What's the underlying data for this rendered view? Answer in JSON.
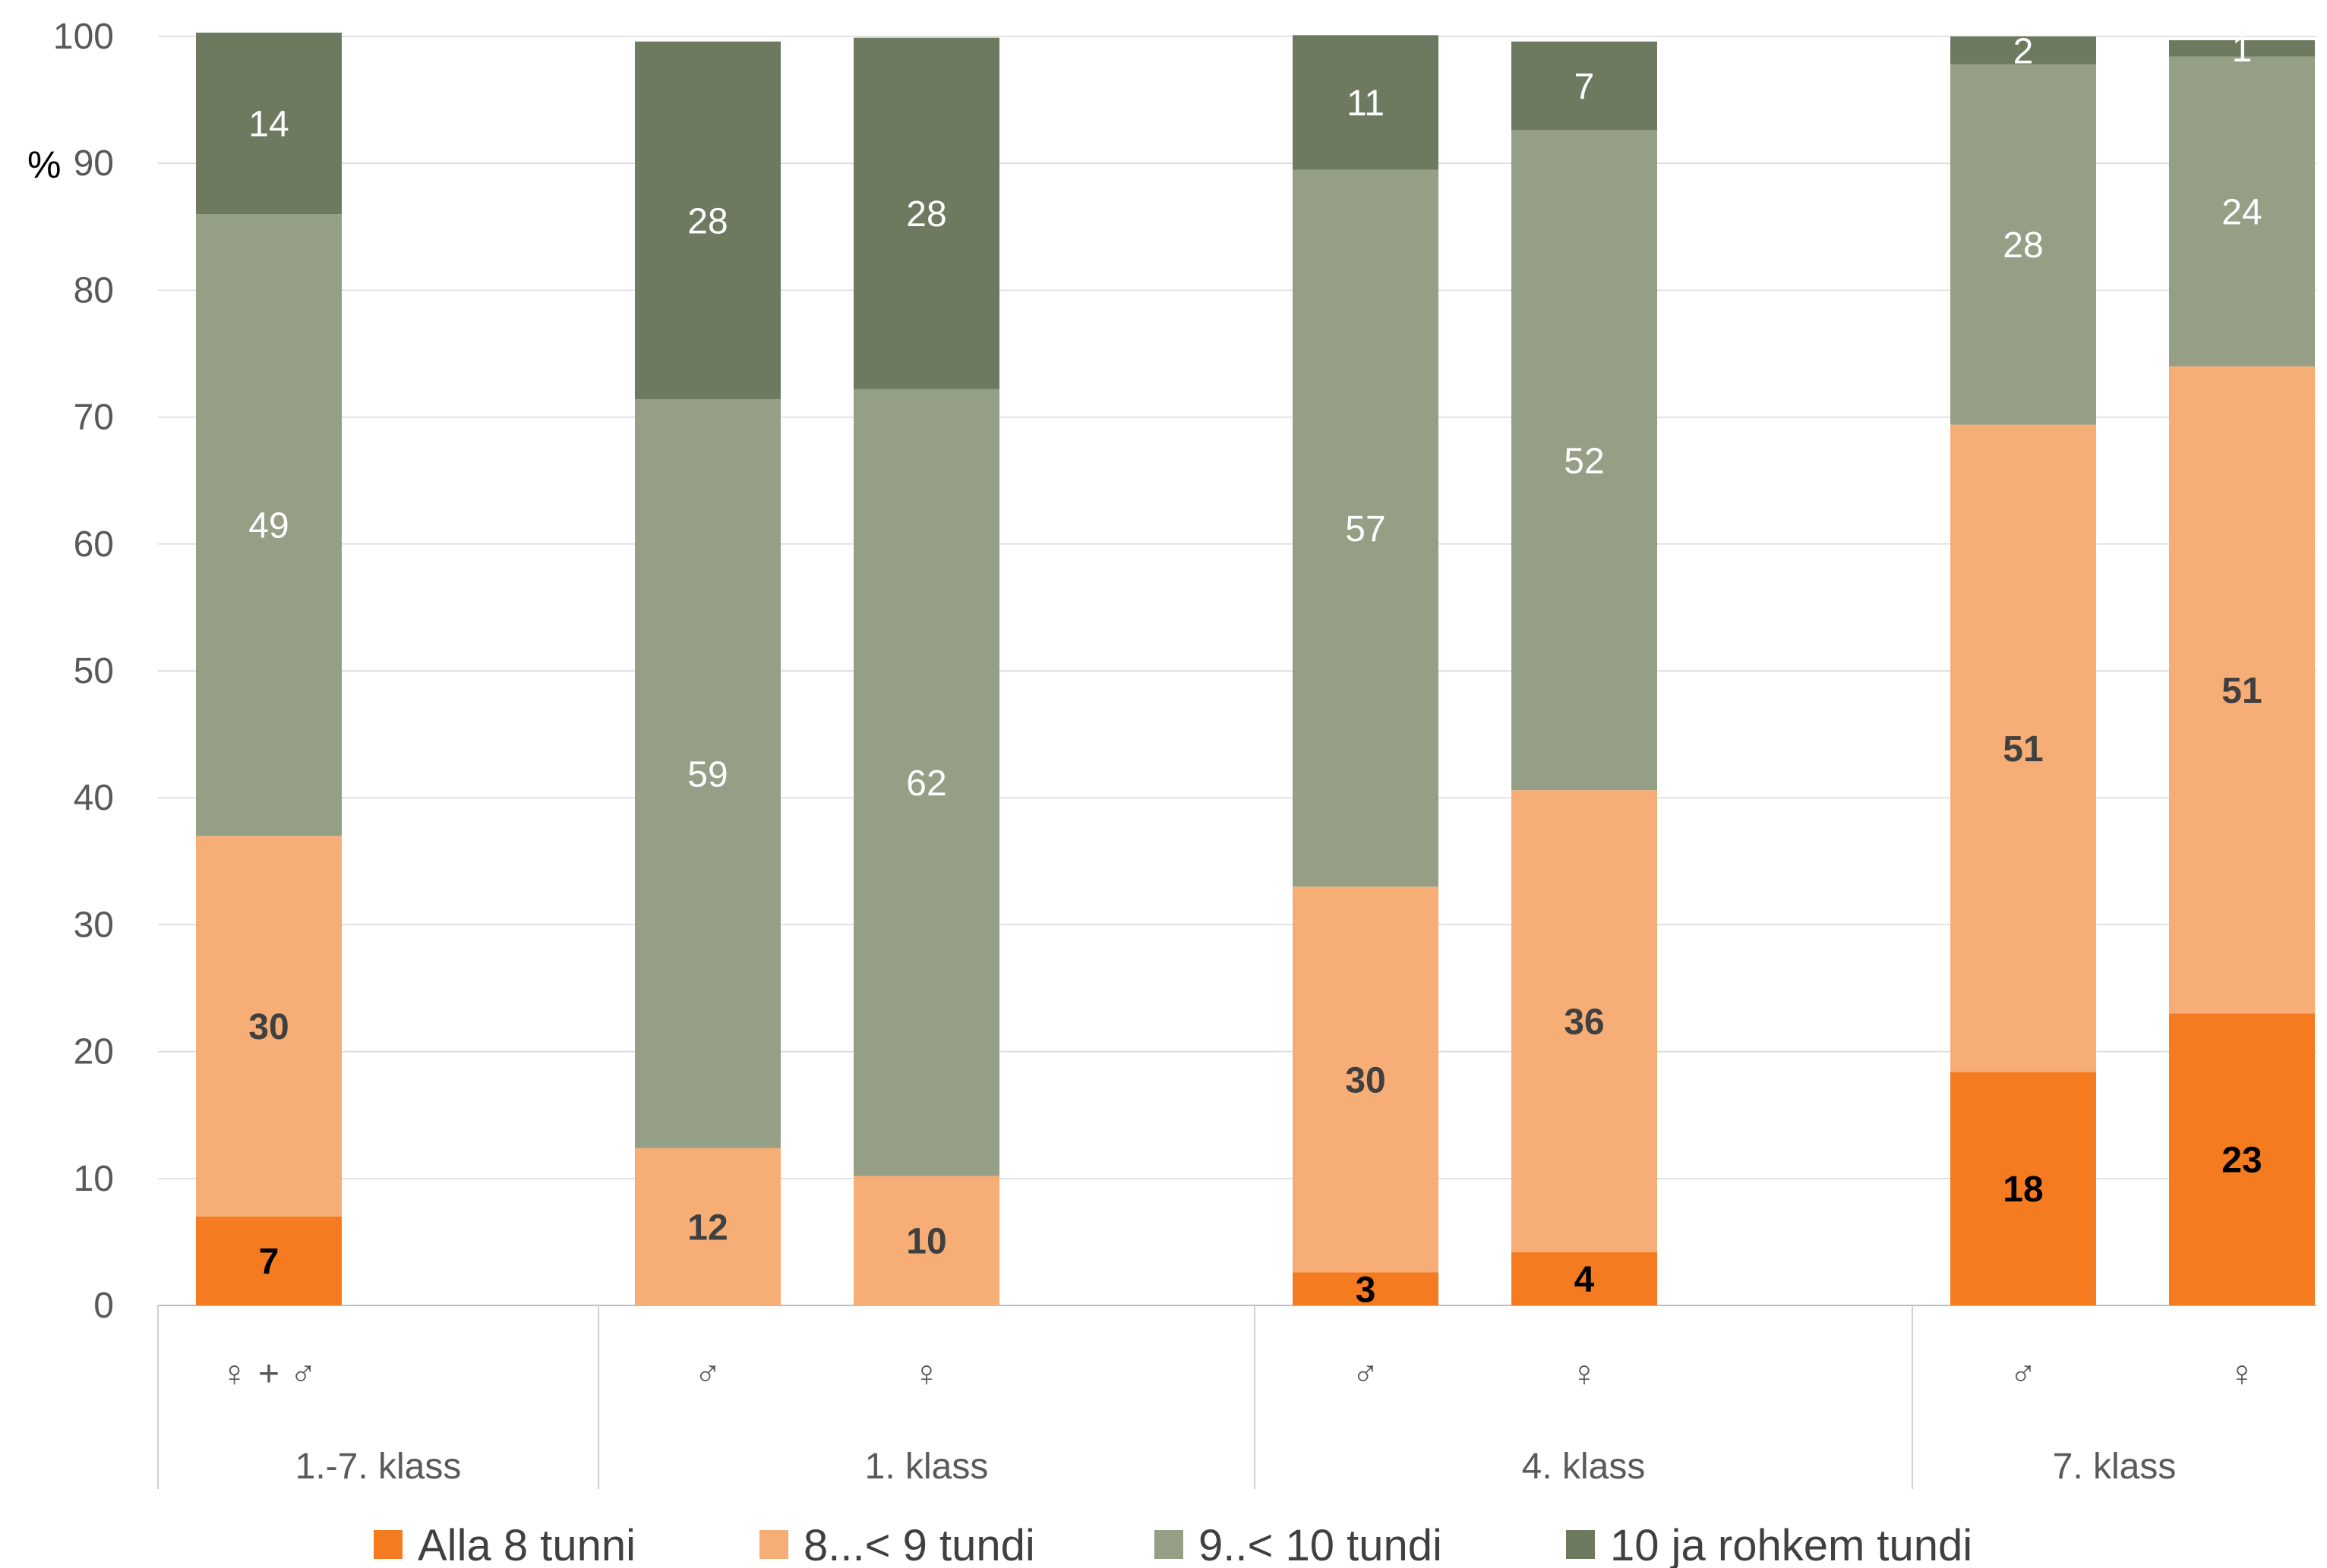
{
  "chart_data": {
    "type": "bar",
    "stacked": true,
    "ylabel": "%",
    "ylim": [
      0,
      100
    ],
    "yticks": [
      0,
      10,
      20,
      30,
      40,
      50,
      60,
      70,
      80,
      90,
      100
    ],
    "grid": true,
    "legend_position": "bottom",
    "groups": [
      {
        "label": "1.-7. klass",
        "bars": [
          "♀ + ♂"
        ]
      },
      {
        "label": "1. klass",
        "bars": [
          "♂",
          "♀"
        ]
      },
      {
        "label": "4. klass",
        "bars": [
          "♂",
          "♀"
        ]
      },
      {
        "label": "7. klass",
        "bars": [
          "♂",
          "♀"
        ]
      }
    ],
    "categories": [
      "♀ + ♂",
      "♂",
      "♀",
      "♂",
      "♀",
      "♂",
      "♀"
    ],
    "series": [
      {
        "name": "Alla 8 tunni",
        "color": "#F47B20",
        "label_color": "#000000",
        "label_bold": true,
        "values": [
          7,
          0,
          0,
          2.6,
          4.2,
          18.4,
          23
        ],
        "labels": [
          "7",
          "",
          "",
          "3",
          "4",
          "18",
          "23"
        ]
      },
      {
        "name": "8...< 9 tundi",
        "color": "#F7AD76",
        "label_color": "#404040",
        "label_bold": true,
        "values": [
          30,
          12.4,
          10.2,
          30.4,
          36.4,
          51,
          51
        ],
        "labels": [
          "30",
          "12",
          "10",
          "30",
          "36",
          "51",
          "51"
        ]
      },
      {
        "name": "9..< 10 tundi",
        "color": "#949F86",
        "label_color": "#ffffff",
        "label_bold": false,
        "values": [
          49,
          59,
          62,
          56.5,
          52,
          28.4,
          24.4
        ],
        "labels": [
          "49",
          "59",
          "62",
          "57",
          "52",
          "28",
          "24"
        ]
      },
      {
        "name": "10 ja rohkem tundi",
        "color": "#6D7A5F",
        "label_color": "#ffffff",
        "label_bold": false,
        "values": [
          14.3,
          28.2,
          27.7,
          10.6,
          7,
          2.2,
          1.3
        ],
        "labels": [
          "14",
          "28",
          "28",
          "11",
          "7",
          "2",
          "1"
        ]
      }
    ]
  }
}
